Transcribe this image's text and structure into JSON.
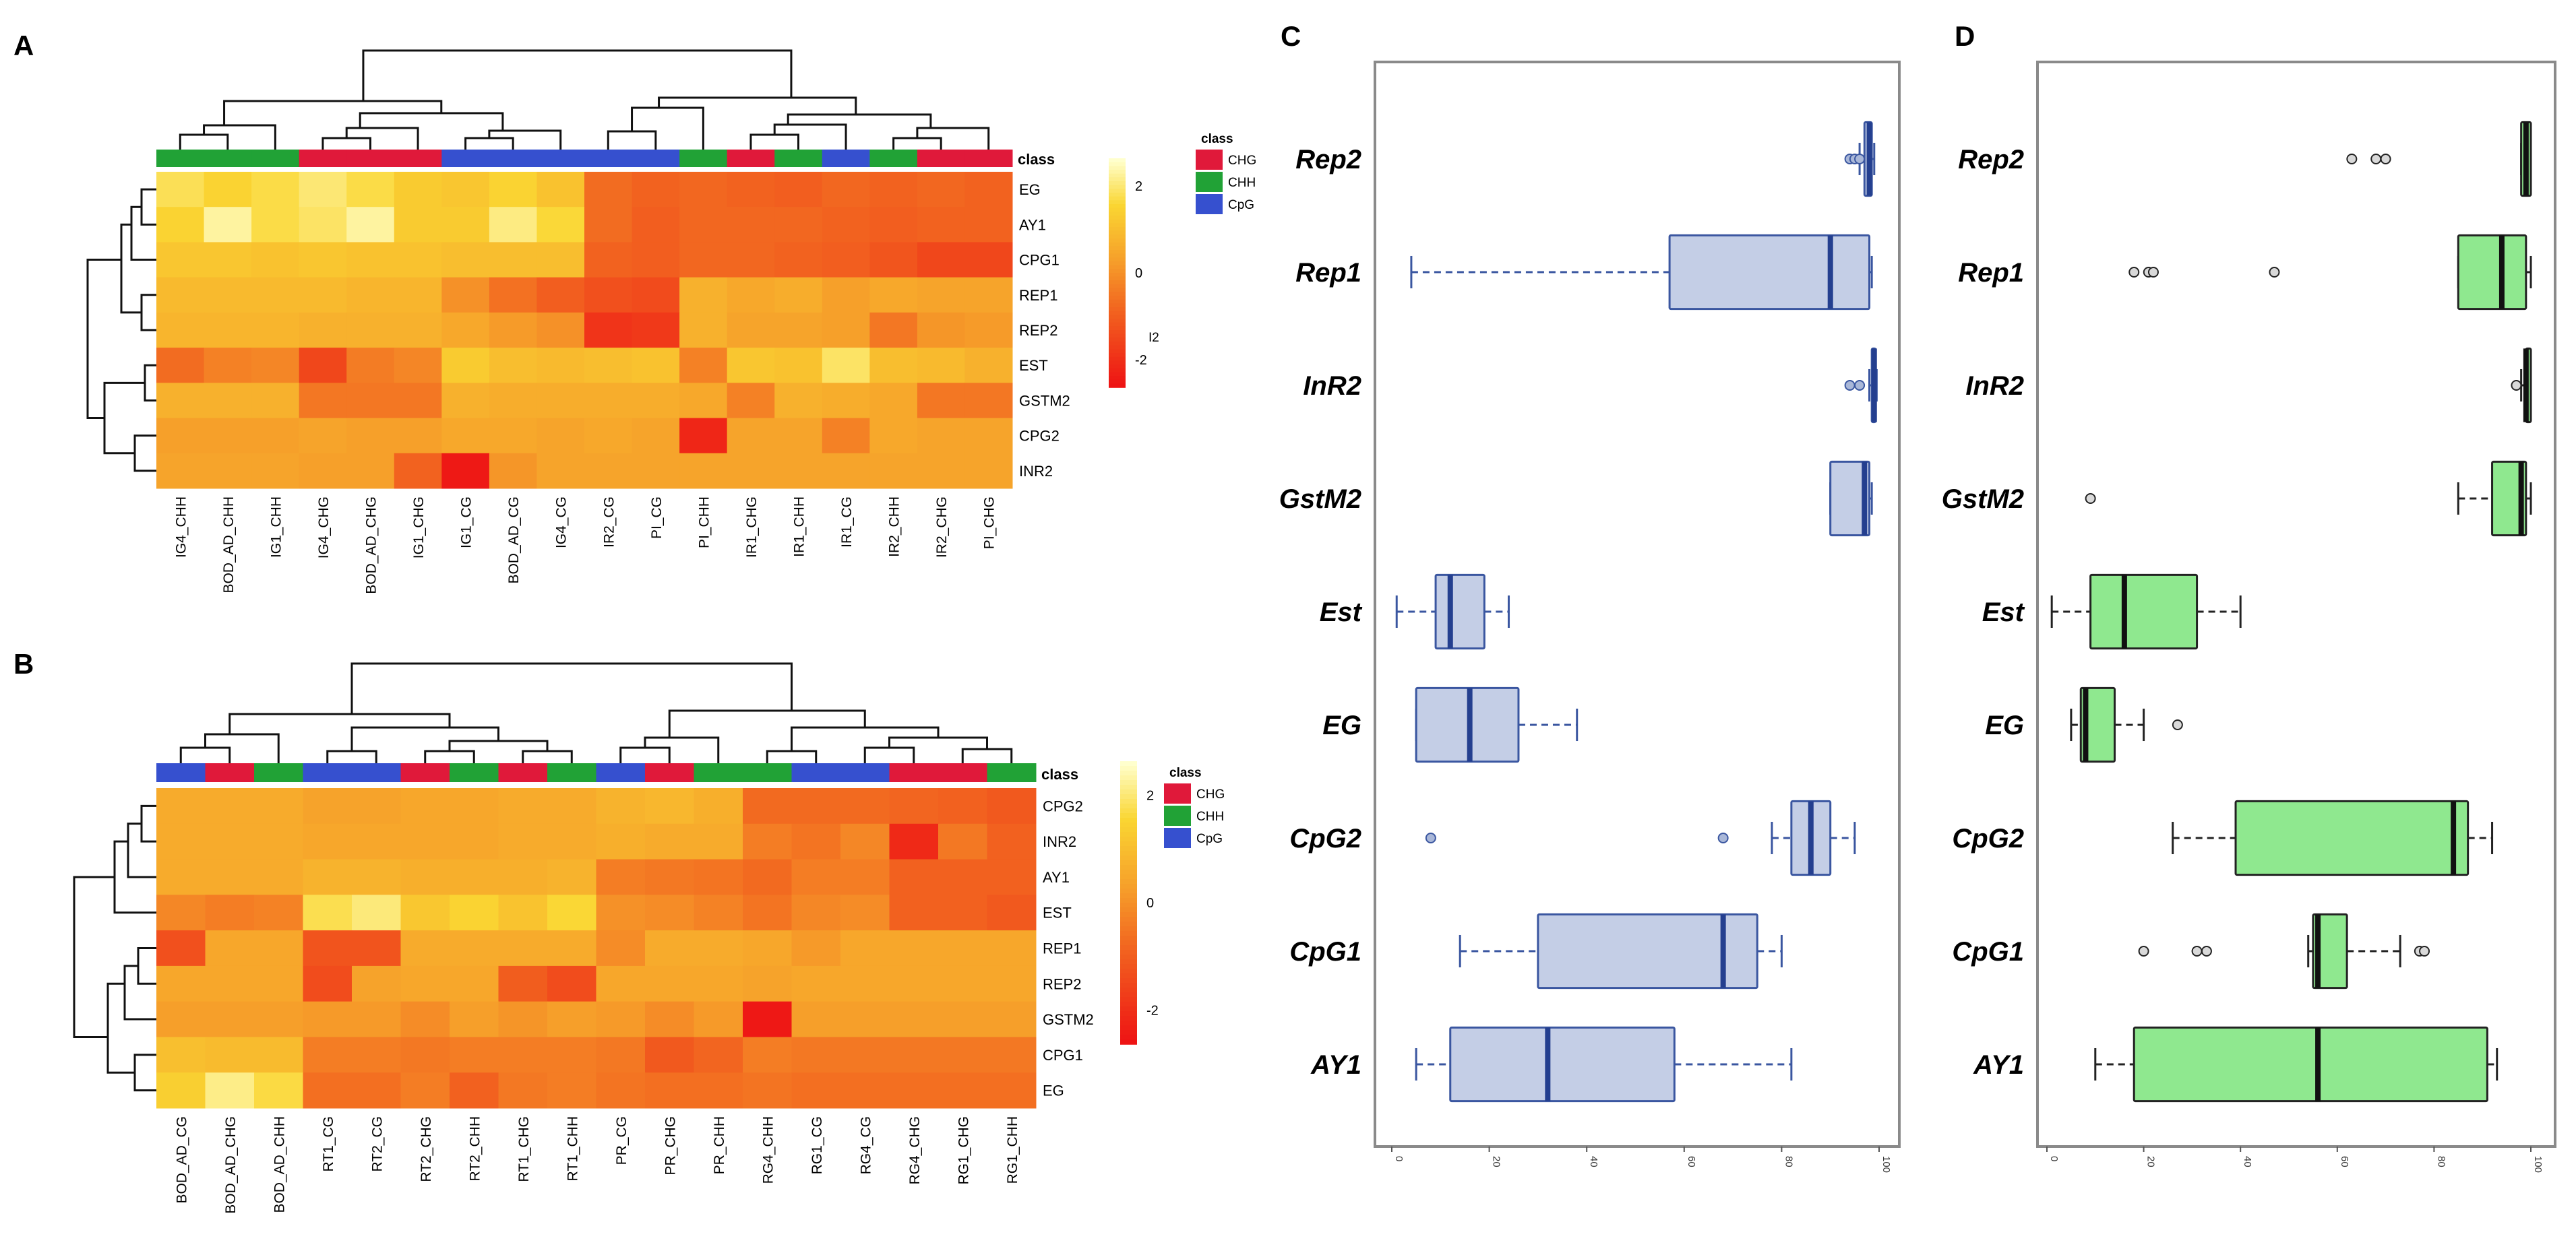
{
  "figure": {
    "panel_labels": [
      "A",
      "B",
      "C",
      "D"
    ]
  },
  "colors": {
    "CHG": "#e0193a",
    "CHH": "#21a236",
    "CpG": "#3650cf",
    "box_fill_C": "#c4cee6",
    "box_line_C": "#3a56a0",
    "box_median_C": "#243f8f",
    "box_fill_D": "#8fe88f",
    "box_line_D": "#222222",
    "frame": "#8a8a8a"
  },
  "chart_data": [
    {
      "panel": "A",
      "type": "heatmap",
      "columns": [
        "IG4_CHH",
        "BOD_AD_CHH",
        "IG1_CHH",
        "IG4_CHG",
        "BOD_AD_CHG",
        "IG1_CHG",
        "IG1_CG",
        "BOD_AD_CG",
        "IG4_CG",
        "IR2_CG",
        "PI_CG",
        "PI_CHH",
        "IR1_CHG",
        "IR1_CHH",
        "IR1_CG",
        "IR2_CHH",
        "IR2_CHG",
        "PI_CHG"
      ],
      "column_class": [
        "CHH",
        "CHH",
        "CHH",
        "CHG",
        "CHG",
        "CHG",
        "CpG",
        "CpG",
        "CpG",
        "CpG",
        "CpG",
        "CHH",
        "CHG",
        "CHH",
        "CpG",
        "CHH",
        "CHG",
        "CHG"
      ],
      "rows": [
        "EG",
        "AY1",
        "CPG1",
        "REP1",
        "REP2",
        "EST",
        "GSTM2",
        "CPG2",
        "INR2"
      ],
      "values": [
        [
          1.8,
          1.5,
          1.7,
          2.0,
          1.7,
          1.3,
          1.2,
          1.5,
          1.1,
          -0.7,
          -0.9,
          -0.8,
          -0.9,
          -1.0,
          -0.8,
          -0.9,
          -0.8,
          -0.9
        ],
        [
          1.5,
          2.3,
          1.7,
          1.9,
          2.3,
          1.3,
          1.3,
          2.1,
          1.6,
          -0.7,
          -1.0,
          -0.8,
          -0.8,
          -0.8,
          -0.9,
          -1.0,
          -0.9,
          -0.9
        ],
        [
          1.2,
          1.2,
          1.1,
          1.2,
          1.1,
          1.1,
          1.0,
          1.0,
          1.0,
          -0.9,
          -1.0,
          -0.8,
          -0.8,
          -0.9,
          -1.0,
          -1.2,
          -1.5,
          -1.5
        ],
        [
          0.9,
          0.9,
          0.9,
          0.9,
          0.8,
          0.8,
          0.0,
          -0.6,
          -1.0,
          -1.3,
          -1.4,
          0.7,
          0.5,
          0.6,
          0.3,
          0.5,
          0.4,
          0.4
        ],
        [
          0.8,
          0.8,
          0.8,
          0.7,
          0.7,
          0.7,
          0.5,
          0.2,
          0.0,
          -1.9,
          -1.8,
          0.7,
          0.4,
          0.4,
          0.3,
          -0.5,
          0.1,
          0.2
        ],
        [
          -0.7,
          -0.3,
          -0.2,
          -1.5,
          -0.4,
          -0.2,
          1.3,
          1.0,
          0.9,
          1.0,
          1.1,
          -0.3,
          1.2,
          1.1,
          1.9,
          1.0,
          0.9,
          0.7
        ],
        [
          0.7,
          0.7,
          0.7,
          -0.5,
          -0.5,
          -0.5,
          0.7,
          0.6,
          0.6,
          0.6,
          0.6,
          0.5,
          -0.3,
          0.7,
          0.6,
          0.5,
          -0.5,
          -0.5
        ],
        [
          0.3,
          0.3,
          0.3,
          0.4,
          0.3,
          0.3,
          0.5,
          0.5,
          0.4,
          0.5,
          0.4,
          -2.2,
          0.4,
          0.4,
          -0.3,
          0.5,
          0.4,
          0.4
        ],
        [
          0.4,
          0.4,
          0.4,
          0.3,
          0.3,
          -0.9,
          -2.5,
          0.1,
          0.4,
          0.4,
          0.4,
          0.4,
          0.4,
          0.4,
          0.4,
          0.4,
          0.4,
          0.4
        ]
      ],
      "legend_title": "class",
      "legend_entries": [
        "CHG",
        "CHH",
        "CpG"
      ],
      "row_header": "class",
      "colorbar_ticks": [
        "2",
        "0",
        "-2"
      ],
      "colorbar_min": -2.6,
      "colorbar_max": 2.6,
      "colorbar_extra_label": "I2"
    },
    {
      "panel": "B",
      "type": "heatmap",
      "columns": [
        "BOD_AD_CG",
        "BOD_AD_CHG",
        "BOD_AD_CHH",
        "RT1_CG",
        "RT2_CG",
        "RT2_CHG",
        "RT2_CHH",
        "RT1_CHG",
        "RT1_CHH",
        "PR_CG",
        "PR_CHG",
        "PR_CHH",
        "RG4_CHH",
        "RG1_CG",
        "RG4_CG",
        "RG4_CHG",
        "RG1_CHG",
        "RG1_CHH"
      ],
      "column_class": [
        "CpG",
        "CHG",
        "CHH",
        "CpG",
        "CpG",
        "CHG",
        "CHH",
        "CHG",
        "CHH",
        "CpG",
        "CHG",
        "CHH",
        "CHH",
        "CpG",
        "CpG",
        "CHG",
        "CHG",
        "CHH"
      ],
      "rows": [
        "CPG2",
        "INR2",
        "AY1",
        "EST",
        "REP1",
        "REP2",
        "GSTM2",
        "CPG1",
        "EG"
      ],
      "values": [
        [
          0.6,
          0.6,
          0.6,
          0.4,
          0.4,
          0.5,
          0.5,
          0.6,
          0.6,
          0.8,
          0.9,
          0.7,
          -0.8,
          -0.8,
          -0.8,
          -0.9,
          -1.0,
          -1.2
        ],
        [
          0.6,
          0.6,
          0.6,
          0.5,
          0.5,
          0.5,
          0.5,
          0.6,
          0.6,
          0.7,
          0.6,
          0.6,
          -0.4,
          -0.6,
          -0.2,
          -2.3,
          -0.5,
          -1.0
        ],
        [
          0.6,
          0.6,
          0.6,
          0.8,
          0.8,
          0.7,
          0.7,
          0.7,
          0.8,
          -0.4,
          -0.5,
          -0.6,
          -0.8,
          -0.4,
          -0.4,
          -1.0,
          -1.0,
          -1.0
        ],
        [
          -0.2,
          -0.4,
          -0.3,
          1.9,
          2.2,
          1.3,
          1.6,
          1.2,
          1.7,
          0.0,
          -0.1,
          -0.3,
          -0.6,
          -0.2,
          -0.1,
          -1.0,
          -1.0,
          -1.2
        ],
        [
          -1.4,
          0.5,
          0.5,
          -1.3,
          -1.3,
          0.6,
          0.6,
          0.6,
          0.6,
          -0.1,
          0.6,
          0.6,
          0.5,
          0.2,
          0.5,
          0.5,
          0.5,
          0.5
        ],
        [
          0.5,
          0.5,
          0.5,
          -1.5,
          0.4,
          0.5,
          0.5,
          -1.1,
          -1.5,
          0.5,
          0.5,
          0.5,
          0.4,
          0.5,
          0.5,
          0.5,
          0.5,
          0.5
        ],
        [
          0.3,
          0.3,
          0.3,
          0.2,
          0.2,
          -0.1,
          0.3,
          0.1,
          0.3,
          0.2,
          -0.1,
          0.2,
          -2.7,
          0.3,
          0.3,
          0.3,
          0.3,
          0.3
        ],
        [
          1.1,
          1.0,
          1.0,
          -0.4,
          -0.4,
          -0.5,
          -0.4,
          -0.4,
          -0.4,
          -0.5,
          -1.2,
          -0.9,
          -0.4,
          -0.5,
          -0.5,
          -0.5,
          -0.5,
          -0.5
        ],
        [
          1.5,
          2.3,
          1.8,
          -0.7,
          -0.7,
          -0.4,
          -1.0,
          -0.5,
          -0.4,
          -0.6,
          -0.7,
          -0.7,
          -0.6,
          -0.7,
          -0.7,
          -0.7,
          -0.7,
          -0.7
        ]
      ],
      "legend_title": "class",
      "legend_entries": [
        "CHG",
        "CHH",
        "CpG"
      ],
      "row_header": "class",
      "colorbar_ticks": [
        "2",
        "0",
        "-2"
      ],
      "colorbar_min": -2.8,
      "colorbar_max": 2.8
    },
    {
      "panel": "C",
      "type": "boxplot",
      "orientation": "horizontal",
      "x_range": [
        0,
        100
      ],
      "x_ticks": [
        "0",
        "20",
        "40",
        "60",
        "80",
        "100"
      ],
      "categories": [
        "Rep2",
        "Rep1",
        "InR2",
        "GstM2",
        "Est",
        "EG",
        "CpG2",
        "CpG1",
        "AY1"
      ],
      "boxes": [
        {
          "min": 96,
          "q1": 97,
          "median": 98,
          "q3": 98.5,
          "max": 99,
          "outliers": [
            94,
            95,
            96
          ]
        },
        {
          "min": 4,
          "q1": 57,
          "median": 90,
          "q3": 98,
          "max": 98.5,
          "outliers": []
        },
        {
          "min": 98,
          "q1": 98.5,
          "median": 99,
          "q3": 99.3,
          "max": 99.5,
          "outliers": [
            94,
            96
          ]
        },
        {
          "min": 90,
          "q1": 90,
          "median": 97,
          "q3": 98,
          "max": 98.5,
          "outliers": []
        },
        {
          "min": 1,
          "q1": 9,
          "median": 12,
          "q3": 19,
          "max": 24,
          "outliers": []
        },
        {
          "min": 5,
          "q1": 5,
          "median": 16,
          "q3": 26,
          "max": 38,
          "outliers": []
        },
        {
          "min": 78,
          "q1": 82,
          "median": 86,
          "q3": 90,
          "max": 95,
          "outliers": [
            8,
            68
          ]
        },
        {
          "min": 14,
          "q1": 30,
          "median": 68,
          "q3": 75,
          "max": 80,
          "outliers": []
        },
        {
          "min": 5,
          "q1": 12,
          "median": 32,
          "q3": 58,
          "max": 82,
          "outliers": []
        }
      ]
    },
    {
      "panel": "D",
      "type": "boxplot",
      "orientation": "horizontal",
      "x_range": [
        0,
        100
      ],
      "x_ticks": [
        "0",
        "20",
        "40",
        "60",
        "80",
        "100"
      ],
      "categories": [
        "Rep2",
        "Rep1",
        "InR2",
        "GstM2",
        "Est",
        "EG",
        "CpG2",
        "CpG1",
        "AY1"
      ],
      "boxes": [
        {
          "min": 98,
          "q1": 98,
          "median": 99,
          "q3": 100,
          "max": 100,
          "outliers": [
            63,
            68,
            70
          ]
        },
        {
          "min": 85,
          "q1": 85,
          "median": 94,
          "q3": 99,
          "max": 100,
          "outliers": [
            18,
            21,
            22,
            47
          ]
        },
        {
          "min": 98,
          "q1": 99,
          "median": 99,
          "q3": 100,
          "max": 100,
          "outliers": [
            97
          ]
        },
        {
          "min": 85,
          "q1": 92,
          "median": 98,
          "q3": 99,
          "max": 100,
          "outliers": [
            9
          ]
        },
        {
          "min": 1,
          "q1": 9,
          "median": 16,
          "q3": 31,
          "max": 40,
          "outliers": []
        },
        {
          "min": 5,
          "q1": 7,
          "median": 8,
          "q3": 14,
          "max": 20,
          "outliers": [
            27
          ]
        },
        {
          "min": 26,
          "q1": 39,
          "median": 84,
          "q3": 87,
          "max": 92,
          "outliers": []
        },
        {
          "min": 54,
          "q1": 55,
          "median": 56,
          "q3": 62,
          "max": 73,
          "outliers": [
            20,
            31,
            33,
            77,
            78
          ]
        },
        {
          "min": 10,
          "q1": 18,
          "median": 56,
          "q3": 91,
          "max": 93,
          "outliers": []
        }
      ]
    }
  ]
}
